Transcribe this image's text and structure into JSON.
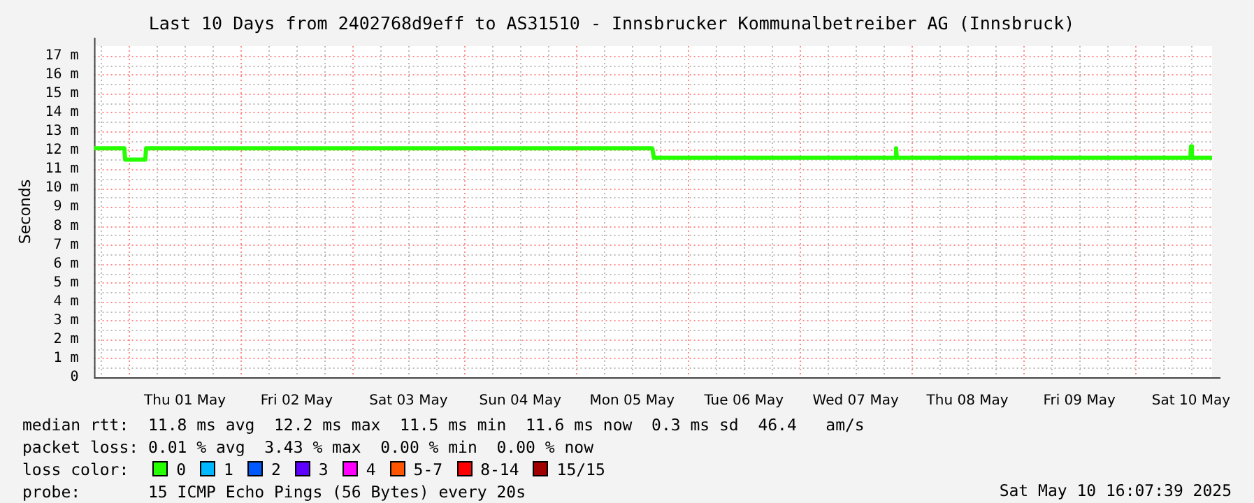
{
  "chart_data": {
    "type": "line",
    "title": "Last 10 Days from 2402768d9eff to AS31510 - Innsbrucker Kommunalbetreiber AG (Innsbruck)",
    "ylabel": "Seconds",
    "x": [
      "2025-04-30T16:30",
      "2025-04-30T23:00",
      "2025-04-30T23:10",
      "2025-05-01T03:30",
      "2025-05-01T03:40",
      "2025-05-05T16:20",
      "2025-05-05T16:40",
      "2025-05-07T20:30",
      "2025-05-07T20:40",
      "2025-05-07T20:50",
      "2025-05-10T11:50",
      "2025-05-10T12:00",
      "2025-05-10T12:10",
      "2025-05-10T16:30"
    ],
    "series": [
      {
        "name": "0",
        "color": "#26ff00",
        "values": [
          12.1,
          12.1,
          11.5,
          11.5,
          12.1,
          12.1,
          11.6,
          11.6,
          12.1,
          11.6,
          11.6,
          12.2,
          11.6,
          11.6
        ]
      },
      {
        "name": "1",
        "color": "#00b8ff",
        "values": [
          null,
          null,
          null,
          null,
          null,
          null,
          null,
          null,
          null,
          null,
          null,
          null,
          null,
          null
        ]
      },
      {
        "name": "2",
        "color": "#0059ff",
        "values": [
          null,
          null,
          null,
          null,
          null,
          null,
          null,
          null,
          null,
          null,
          null,
          null,
          null,
          null
        ]
      },
      {
        "name": "3",
        "color": "#5e00ff",
        "values": [
          null,
          null,
          null,
          null,
          null,
          null,
          null,
          null,
          null,
          null,
          null,
          null,
          null,
          null
        ]
      },
      {
        "name": "4",
        "color": "#ff00ff",
        "values": [
          null,
          null,
          null,
          null,
          null,
          null,
          null,
          null,
          null,
          null,
          null,
          null,
          null,
          null
        ]
      },
      {
        "name": "5-7",
        "color": "#ff5500",
        "values": [
          null,
          null,
          null,
          null,
          null,
          null,
          null,
          null,
          null,
          null,
          null,
          null,
          null,
          null
        ]
      },
      {
        "name": "8-14",
        "color": "#ff0000",
        "values": [
          null,
          null,
          null,
          null,
          null,
          null,
          null,
          null,
          null,
          null,
          null,
          null,
          null,
          null
        ]
      },
      {
        "name": "15/15",
        "color": "#a10000",
        "values": [
          null,
          null,
          null,
          null,
          null,
          null,
          null,
          null,
          null,
          null,
          null,
          null,
          null,
          null
        ]
      }
    ],
    "legend_title": "loss color:",
    "legend": "bottom",
    "grid": true,
    "marker": "none",
    "line_style": "solid",
    "xlim": [
      "2025-04-30T16:30",
      "2025-05-10T16:30"
    ],
    "xticks": [
      {
        "value": "2025-05-01T12:00",
        "label": "Thu 01 May"
      },
      {
        "value": "2025-05-02T12:00",
        "label": "Fri 02 May"
      },
      {
        "value": "2025-05-03T12:00",
        "label": "Sat 03 May"
      },
      {
        "value": "2025-05-04T12:00",
        "label": "Sun 04 May"
      },
      {
        "value": "2025-05-05T12:00",
        "label": "Mon 05 May"
      },
      {
        "value": "2025-05-06T12:00",
        "label": "Tue 06 May"
      },
      {
        "value": "2025-05-07T12:00",
        "label": "Wed 07 May"
      },
      {
        "value": "2025-05-08T12:00",
        "label": "Thu 08 May"
      },
      {
        "value": "2025-05-09T12:00",
        "label": "Fri 09 May"
      },
      {
        "value": "2025-05-10T12:00",
        "label": "Sat 10 May"
      }
    ],
    "ylim": [
      0,
      17.5
    ],
    "yticks": [
      0,
      {
        "value": 1,
        "label": "1 m"
      },
      {
        "value": 2,
        "label": "2 m"
      },
      {
        "value": 3,
        "label": "3 m"
      },
      {
        "value": 4,
        "label": "4 m"
      },
      {
        "value": 5,
        "label": "5 m"
      },
      {
        "value": 6,
        "label": "6 m"
      },
      {
        "value": 7,
        "label": "7 m"
      },
      {
        "value": 8,
        "label": "8 m"
      },
      {
        "value": 9,
        "label": "9 m"
      },
      {
        "value": 10,
        "label": "10 m"
      },
      {
        "value": 11,
        "label": "11 m"
      },
      {
        "value": 12,
        "label": "12 m"
      },
      {
        "value": 13,
        "label": "13 m"
      },
      {
        "value": 14,
        "label": "14 m"
      },
      {
        "value": 15,
        "label": "15 m"
      },
      {
        "value": 16,
        "label": "16 m"
      },
      {
        "value": 17,
        "label": "17 m"
      }
    ],
    "annotations": [
      "median rtt:  11.8 ms avg  12.2 ms max  11.5 ms min  11.6 ms now  0.3 ms sd  46.4   am/s",
      "packet loss: 0.01 % avg  3.43 % max  0.00 % min  0.00 % now",
      "probe:       15 ICMP Echo Pings (56 Bytes) every 20s",
      "Sat May 10 16:07:39 2025"
    ]
  }
}
